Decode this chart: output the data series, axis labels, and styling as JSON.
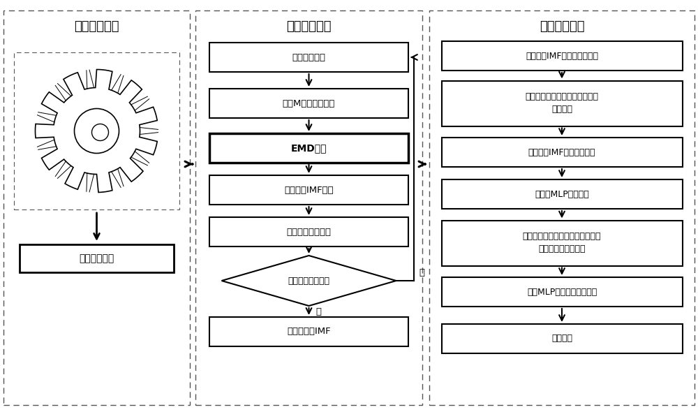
{
  "bg_color": "#ffffff",
  "section1_title": "采集振动信号",
  "section2_title": "提取故障特征",
  "section3_title": "故障特诊识别",
  "left_box_label": "采集振动信号",
  "middle_boxes": [
    "原始振动信号",
    "添加M次高斯白噪声",
    "EMD处理",
    "获取一个IMF分量",
    "计算信号残余部分",
    "是否达到停止标准",
    "获取全部的IMF"
  ],
  "right_boxes": [
    "建立每个IMF分量的空间矩阵",
    "通过模糊函数定义每组向量之间\n的相似度",
    "获取每个IMF分量的模糊熵",
    "初始化MLP神经网络",
    "获取正向推进和反向传播误差信息\n以及更新的权重参数",
    "完成MLP神经网络训练过程",
    "输出结果"
  ],
  "no_label": "否",
  "yes_label": "是"
}
